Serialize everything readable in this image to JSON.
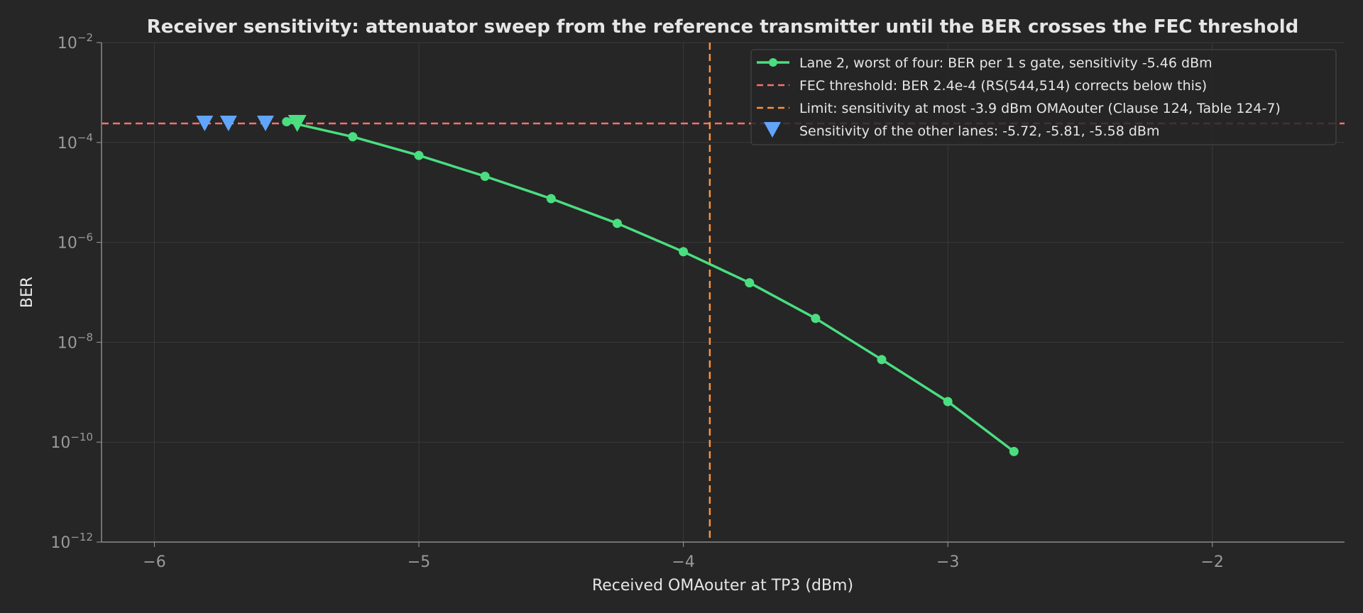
{
  "colors": {
    "background": "#262626",
    "grid": "#3a3a3a",
    "axis": "#8a8a8a",
    "series": "#4ade80",
    "threshold": "#f87171",
    "limit": "#fb923c",
    "other_lanes": "#60a5fa"
  },
  "chart_data": {
    "type": "line",
    "title": "Receiver sensitivity: attenuator sweep from the reference transmitter until the BER crosses the FEC threshold",
    "xlabel": "Received OMAouter at TP3 (dBm)",
    "ylabel": "BER",
    "xlim": [
      -6.2,
      -1.5
    ],
    "ylim": [
      1e-12,
      0.01
    ],
    "yscale": "log",
    "grid": true,
    "legend_position": "top-right",
    "x_ticks": [
      {
        "value": -6,
        "label": "−6"
      },
      {
        "value": -5,
        "label": "−5"
      },
      {
        "value": -4,
        "label": "−4"
      },
      {
        "value": -3,
        "label": "−3"
      },
      {
        "value": -2,
        "label": "−2"
      }
    ],
    "y_ticks": [
      {
        "value": 0.01,
        "base": "10",
        "exp": "−2"
      },
      {
        "value": 0.0001,
        "base": "10",
        "exp": "−4"
      },
      {
        "value": 1e-06,
        "base": "10",
        "exp": "−6"
      },
      {
        "value": 1e-08,
        "base": "10",
        "exp": "−8"
      },
      {
        "value": 1e-10,
        "base": "10",
        "exp": "−10"
      },
      {
        "value": 1e-12,
        "base": "10",
        "exp": "−12"
      }
    ],
    "series": [
      {
        "name": "Lane 2, worst of four: BER per 1 s gate, sensitivity -5.46 dBm",
        "x": [
          -5.5,
          -5.25,
          -5.0,
          -4.75,
          -4.5,
          -4.25,
          -4.0,
          -3.75,
          -3.5,
          -3.25,
          -3.0,
          -2.75
        ],
        "y": [
          0.00026,
          0.00013,
          5.5e-05,
          2.1e-05,
          7.5e-06,
          2.4e-06,
          6.5e-07,
          1.55e-07,
          3e-08,
          4.5e-09,
          6.5e-10,
          6.5e-11
        ]
      }
    ],
    "threshold": {
      "name": "FEC threshold: BER 2.4e-4 (RS(544,514) corrects below this)",
      "y": 0.00024
    },
    "limit": {
      "name": "Limit: sensitivity at most -3.9 dBm OMAouter (Clause 124, Table 124-7)",
      "x": -3.9
    },
    "sensitivity_marker": {
      "x": -5.46,
      "y": 0.00024
    },
    "other_lanes": {
      "name": "Sensitivity of the other lanes: -5.72, -5.81, -5.58 dBm",
      "x": [
        -5.72,
        -5.81,
        -5.58
      ],
      "y": 0.00024
    }
  }
}
